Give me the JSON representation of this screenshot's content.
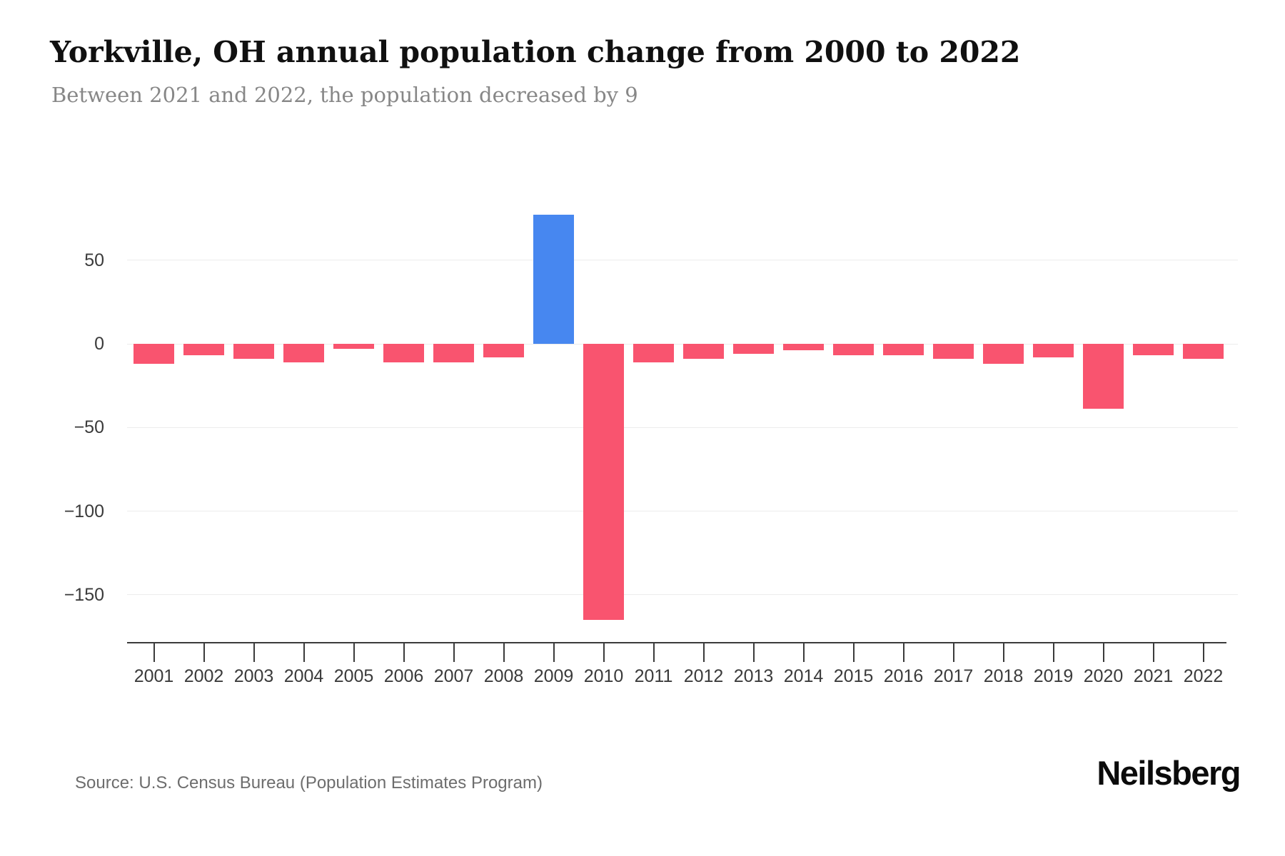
{
  "header": {
    "title": "Yorkville, OH annual population change from 2000 to 2022",
    "subtitle": "Between 2021 and 2022, the population decreased by 9"
  },
  "footer": {
    "source": "Source: U.S. Census Bureau (Population Estimates Program)",
    "brand": "Neilsberg"
  },
  "chart_data": {
    "type": "bar",
    "title": "Yorkville, OH annual population change from 2000 to 2022",
    "categories": [
      "2001",
      "2002",
      "2003",
      "2004",
      "2005",
      "2006",
      "2007",
      "2008",
      "2009",
      "2010",
      "2011",
      "2012",
      "2013",
      "2014",
      "2015",
      "2016",
      "2017",
      "2018",
      "2019",
      "2020",
      "2021",
      "2022"
    ],
    "values": [
      -12,
      -7,
      -9,
      -11,
      -3,
      -11,
      -11,
      -8,
      77,
      -165,
      -11,
      -9,
      -6,
      -4,
      -7,
      -7,
      -9,
      -12,
      -8,
      -39,
      -7,
      -9
    ],
    "xlabel": "",
    "ylabel": "",
    "ylim": [
      -178,
      94
    ],
    "yticks": [
      {
        "value": 50,
        "label": "50"
      },
      {
        "value": 0,
        "label": "0"
      },
      {
        "value": -50,
        "label": "−50"
      },
      {
        "value": -100,
        "label": "−100"
      },
      {
        "value": -150,
        "label": "−150"
      }
    ],
    "grid": "horizontal",
    "legend": "none",
    "colors": {
      "bar_negative": "#f9546f",
      "bar_positive": "#4787f0",
      "grid": "#ececec",
      "axis": "#3b3b3b",
      "tick_label": "#3b3b3b",
      "title": "#101010",
      "subtitle": "#878787",
      "source": "#6d6d6d",
      "brand": "#0b0b0b"
    }
  }
}
